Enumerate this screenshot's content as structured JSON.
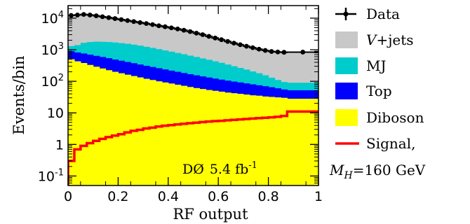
{
  "chart_data": {
    "type": "area",
    "scale": "log-y",
    "xlabel": "RF output",
    "ylabel": "Events/bin",
    "xlim": [
      0,
      1
    ],
    "ylim": [
      0.05,
      25000
    ],
    "x_ticks": [
      "0",
      "0.2",
      "0.4",
      "0.6",
      "0.8",
      "1"
    ],
    "x_tick_values": [
      0,
      0.2,
      0.4,
      0.6,
      0.8,
      1
    ],
    "y_ticks": [
      {
        "value": 0.1,
        "base": "10",
        "exp": "-1"
      },
      {
        "value": 1,
        "label": "1"
      },
      {
        "value": 10,
        "label": "10"
      },
      {
        "value": 100,
        "base": "10",
        "exp": "2"
      },
      {
        "value": 1000,
        "base": "10",
        "exp": "3"
      },
      {
        "value": 10000,
        "base": "10",
        "exp": "4"
      }
    ],
    "annotation": {
      "experiment": "DØ",
      "lumi": "5.4 fb",
      "lumi_exp": "-1"
    },
    "bin_edges": [
      0,
      0.025,
      0.05,
      0.075,
      0.1,
      0.125,
      0.15,
      0.175,
      0.2,
      0.225,
      0.25,
      0.275,
      0.3,
      0.325,
      0.35,
      0.375,
      0.4,
      0.425,
      0.45,
      0.475,
      0.5,
      0.525,
      0.55,
      0.575,
      0.6,
      0.625,
      0.65,
      0.675,
      0.7,
      0.725,
      0.75,
      0.775,
      0.8,
      0.825,
      0.85,
      0.875,
      1.0
    ],
    "stack_cumulative": [
      {
        "name": "Diboson",
        "color": "#ffff00",
        "values": [
          500,
          430,
          380,
          330,
          290,
          255,
          225,
          200,
          180,
          162,
          147,
          133,
          120,
          110,
          100,
          92,
          85,
          78,
          72,
          66,
          61,
          57,
          53,
          50,
          47,
          44,
          42,
          40,
          38,
          36,
          35,
          33,
          32,
          31,
          30,
          28
        ]
      },
      {
        "name": "Top",
        "color": "#0000ff",
        "values": [
          900,
          820,
          760,
          700,
          640,
          590,
          540,
          490,
          450,
          410,
          375,
          340,
          310,
          285,
          260,
          238,
          218,
          200,
          183,
          168,
          155,
          143,
          132,
          122,
          113,
          105,
          98,
          92,
          86,
          80,
          75,
          70,
          65,
          60,
          55,
          52
        ]
      },
      {
        "name": "MJ",
        "color": "#00cccc",
        "values": [
          1300,
          1400,
          1650,
          1750,
          1800,
          1780,
          1750,
          1700,
          1620,
          1540,
          1450,
          1350,
          1240,
          1140,
          1040,
          950,
          870,
          790,
          720,
          650,
          590,
          530,
          480,
          430,
          385,
          340,
          300,
          265,
          235,
          205,
          180,
          155,
          130,
          110,
          95,
          90
        ]
      },
      {
        "name": "V+jets",
        "color": "#c8c8c8",
        "values": [
          12000,
          12500,
          13000,
          12500,
          11800,
          11000,
          10300,
          9600,
          8900,
          8300,
          7700,
          7200,
          6700,
          6200,
          5700,
          5300,
          4900,
          4500,
          4100,
          3700,
          3300,
          2950,
          2600,
          2300,
          2050,
          1800,
          1600,
          1420,
          1270,
          1150,
          1030,
          940,
          870,
          840,
          820,
          830
        ]
      }
    ],
    "data": {
      "name": "Data",
      "values": [
        12200,
        12600,
        13100,
        12600,
        11900,
        11100,
        10400,
        9700,
        9000,
        8400,
        7800,
        7250,
        6750,
        6250,
        5750,
        5350,
        4950,
        4550,
        4150,
        3750,
        3350,
        3000,
        2650,
        2350,
        2080,
        1830,
        1620,
        1440,
        1290,
        1160,
        1040,
        950,
        880,
        850,
        830,
        840
      ]
    },
    "signal": {
      "name": "Signal",
      "color": "#ff0000",
      "values": [
        0.3,
        0.7,
        0.9,
        1.1,
        1.3,
        1.5,
        1.7,
        1.9,
        2.1,
        2.4,
        2.7,
        2.9,
        3.2,
        3.4,
        3.7,
        3.9,
        4.1,
        4.3,
        4.5,
        4.7,
        4.9,
        5.1,
        5.3,
        5.5,
        5.6,
        5.8,
        6.0,
        6.2,
        6.4,
        6.6,
        6.8,
        7.0,
        7.2,
        7.5,
        8.0,
        11.0
      ]
    },
    "legend": {
      "position": "right",
      "entries": [
        {
          "key": "data",
          "label": "Data"
        },
        {
          "key": "vjets",
          "label_main": "V",
          "label_rest": "+jets"
        },
        {
          "key": "mj",
          "label": "MJ"
        },
        {
          "key": "top",
          "label": "Top"
        },
        {
          "key": "diboson",
          "label": "Diboson"
        },
        {
          "key": "signal",
          "label": "Signal,",
          "label_line2_main": "M",
          "label_line2_sub": "H",
          "label_line2_rest": "=160 GeV"
        }
      ]
    }
  }
}
